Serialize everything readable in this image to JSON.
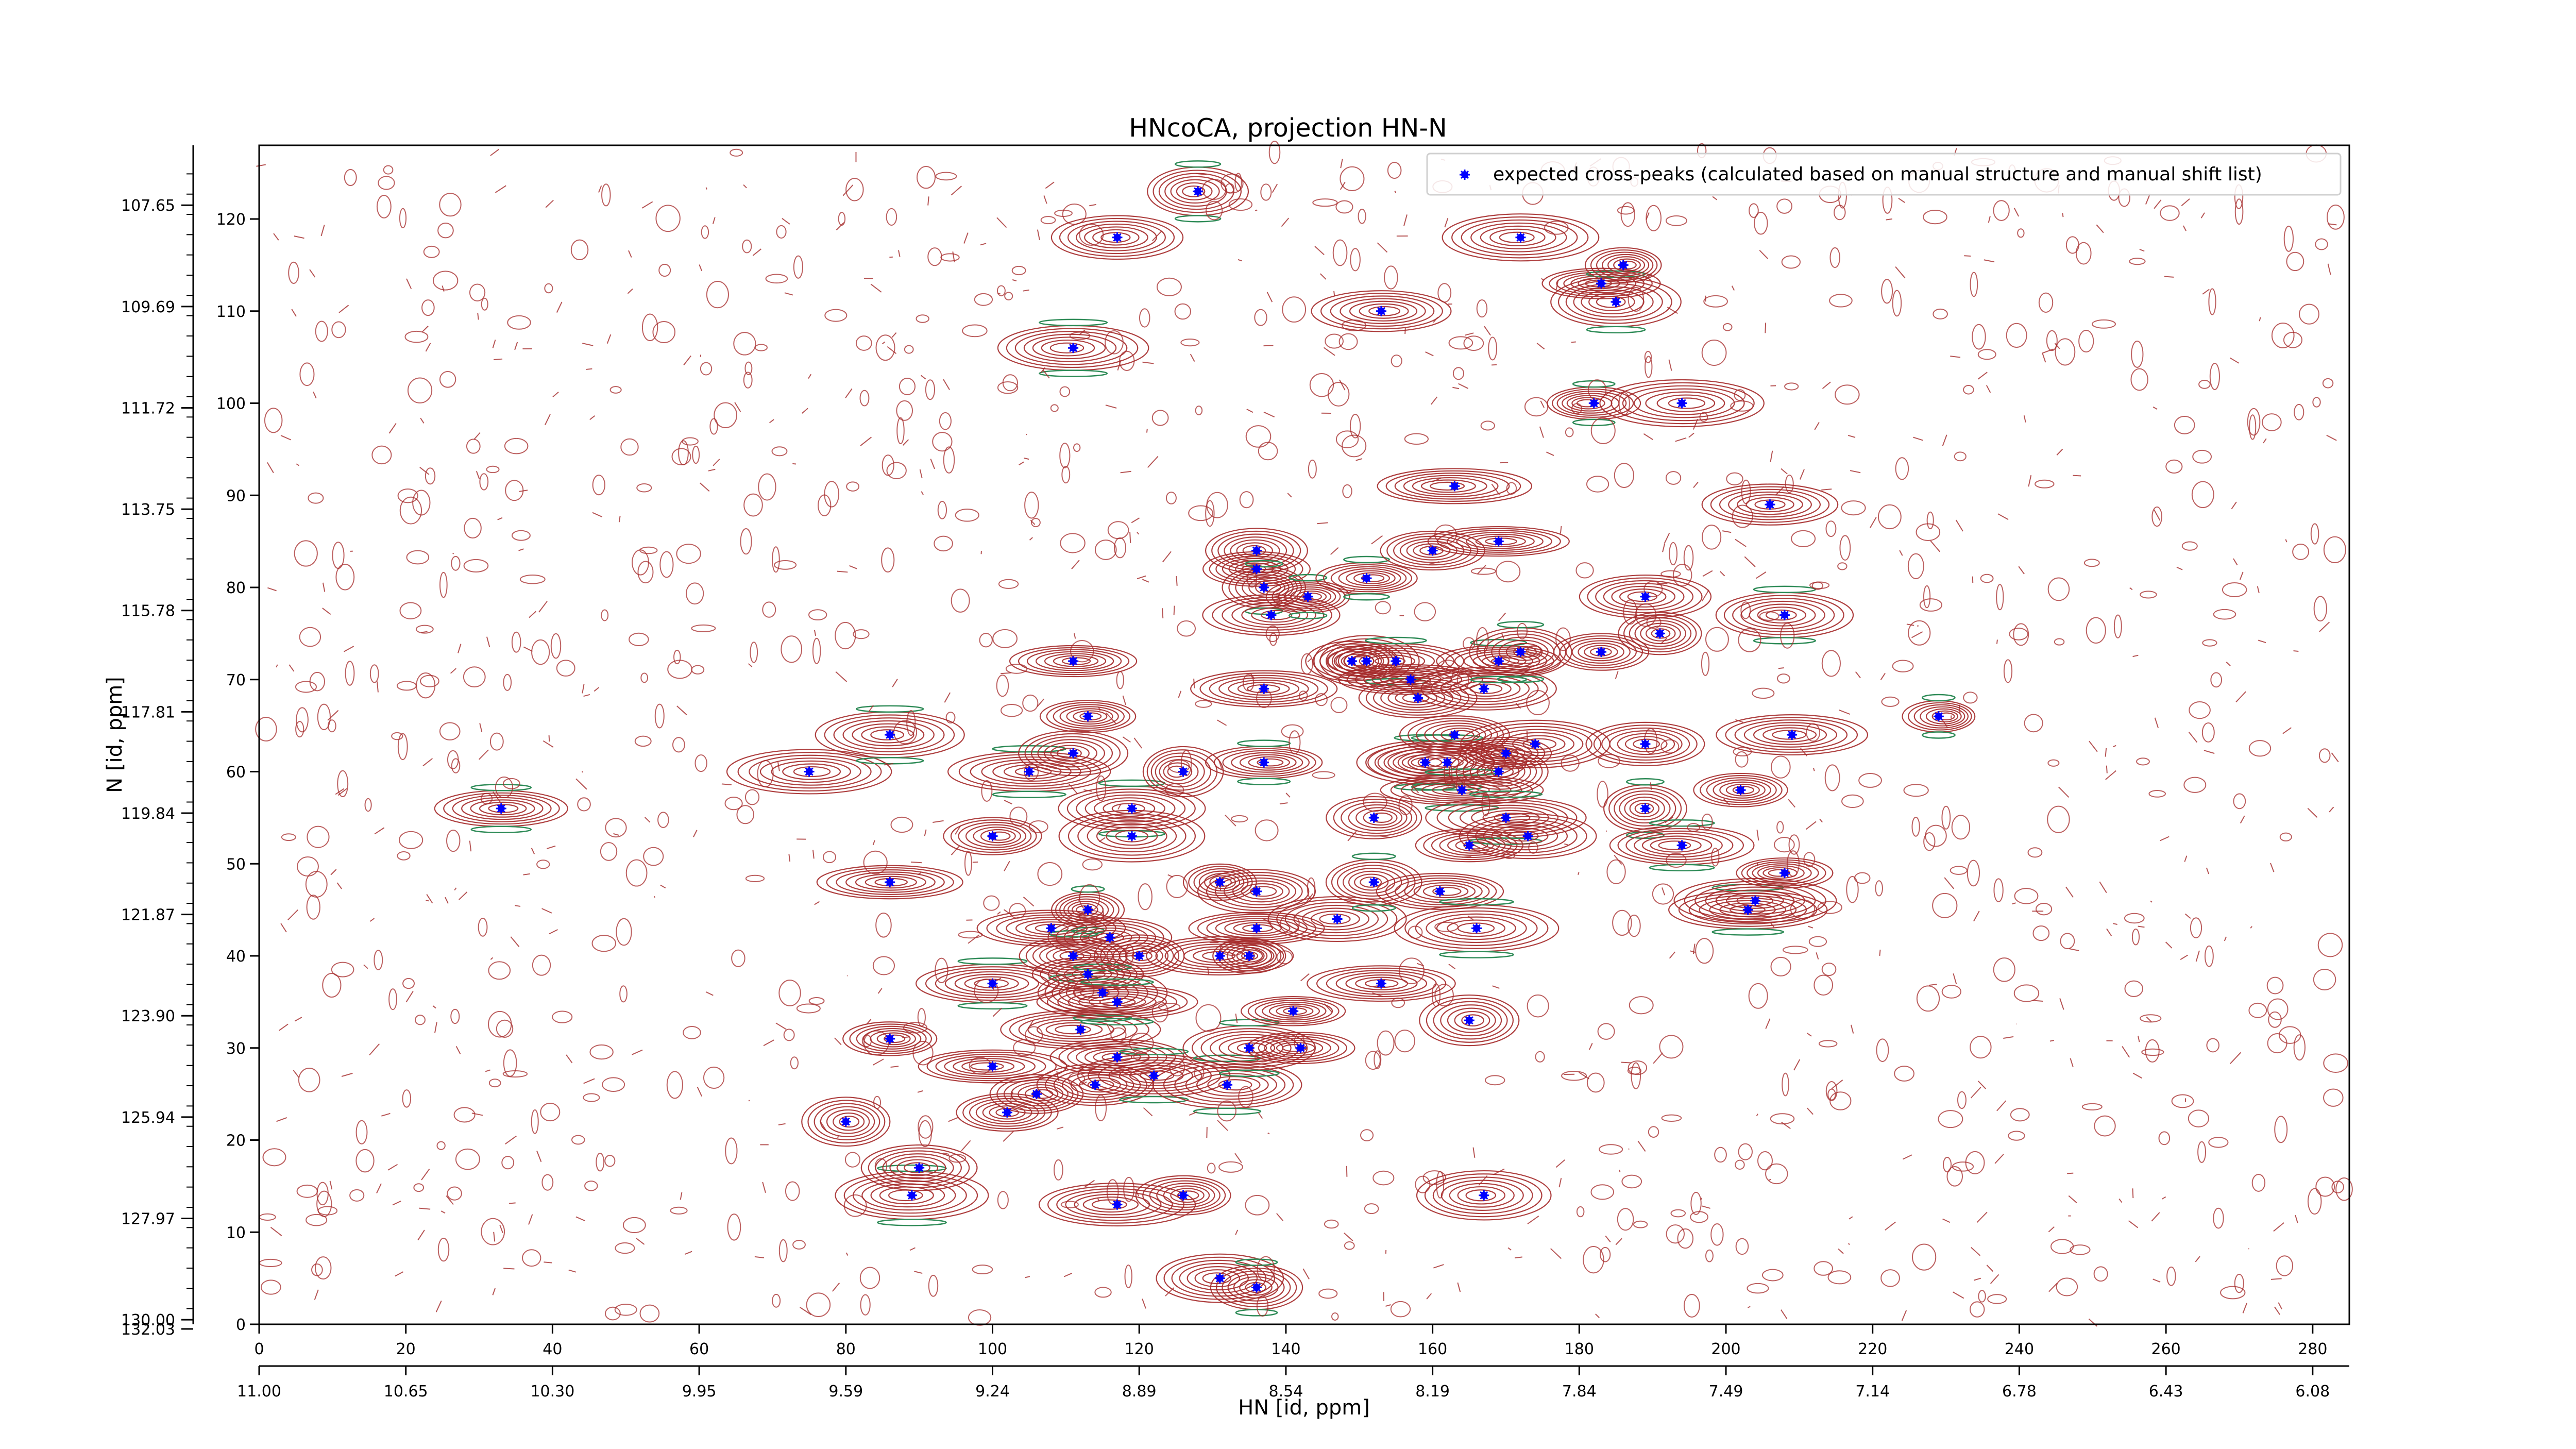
{
  "chart_data": {
    "type": "contour",
    "title": "HNcoCA, projection HN-N",
    "xlabel": "HN [id, ppm]",
    "ylabel": "N [id, ppm]",
    "index_x": {
      "range": [
        0,
        285
      ],
      "ticks": [
        0,
        20,
        40,
        60,
        80,
        100,
        120,
        140,
        160,
        180,
        200,
        220,
        240,
        260,
        280
      ]
    },
    "index_y": {
      "range": [
        0,
        128
      ],
      "ticks": [
        0,
        10,
        20,
        30,
        40,
        50,
        60,
        70,
        80,
        90,
        100,
        110,
        120
      ]
    },
    "ppm_x_tick_labels": [
      "11.00",
      "10.65",
      "10.30",
      "9.95",
      "9.59",
      "9.24",
      "8.89",
      "8.54",
      "8.19",
      "7.84",
      "7.49",
      "7.14",
      "6.78",
      "6.43",
      "6.08"
    ],
    "ppm_y_tick_labels": [
      "107.65",
      "109.69",
      "111.72",
      "113.75",
      "115.78",
      "117.81",
      "119.84",
      "121.87",
      "123.90",
      "125.94",
      "127.97",
      "130.00",
      "132.03"
    ],
    "ppm_y_tick_positions": [
      121.5,
      110.5,
      99.5,
      88.5,
      77.5,
      66.5,
      55.5,
      44.5,
      33.5,
      22.5,
      11.5,
      0.5,
      -0.5
    ],
    "legend": {
      "label": "expected cross-peaks (calculated based on manual structure and manual shift list)",
      "placement": "top-right"
    },
    "contour_colors": {
      "positive": "#a52a2a",
      "negative": "#2e8b57"
    },
    "marker_color": "#0000ff",
    "peaks": [
      [
        33,
        56
      ],
      [
        75,
        60
      ],
      [
        80,
        22
      ],
      [
        86,
        64
      ],
      [
        86,
        48
      ],
      [
        86,
        31
      ],
      [
        89,
        14
      ],
      [
        90,
        17
      ],
      [
        100,
        53
      ],
      [
        100,
        37
      ],
      [
        100,
        28
      ],
      [
        102,
        23
      ],
      [
        105,
        60
      ],
      [
        106,
        25
      ],
      [
        108,
        43
      ],
      [
        111,
        106
      ],
      [
        111,
        72
      ],
      [
        111,
        62
      ],
      [
        111,
        40
      ],
      [
        112,
        32
      ],
      [
        113,
        66
      ],
      [
        113,
        45
      ],
      [
        113,
        38
      ],
      [
        114,
        26
      ],
      [
        115,
        36
      ],
      [
        116,
        42
      ],
      [
        117,
        29
      ],
      [
        117,
        35
      ],
      [
        117,
        13
      ],
      [
        117,
        118
      ],
      [
        119,
        56
      ],
      [
        119,
        53
      ],
      [
        120,
        40
      ],
      [
        122,
        27
      ],
      [
        126,
        60
      ],
      [
        126,
        14
      ],
      [
        128,
        123
      ],
      [
        131,
        40
      ],
      [
        131,
        48
      ],
      [
        132,
        26
      ],
      [
        131,
        5
      ],
      [
        135,
        40
      ],
      [
        135,
        30
      ],
      [
        136,
        47
      ],
      [
        136,
        43
      ],
      [
        136,
        4
      ],
      [
        136,
        84
      ],
      [
        136,
        82
      ],
      [
        137,
        80
      ],
      [
        138,
        77
      ],
      [
        137,
        69
      ],
      [
        137,
        61
      ],
      [
        141,
        34
      ],
      [
        142,
        30
      ],
      [
        143,
        79
      ],
      [
        147,
        44
      ],
      [
        149,
        72
      ],
      [
        151,
        81
      ],
      [
        151,
        72
      ],
      [
        152,
        55
      ],
      [
        152,
        48
      ],
      [
        153,
        37
      ],
      [
        153,
        110
      ],
      [
        155,
        72
      ],
      [
        157,
        70
      ],
      [
        158,
        68
      ],
      [
        159,
        61
      ],
      [
        160,
        84
      ],
      [
        161,
        47
      ],
      [
        162,
        61
      ],
      [
        163,
        91
      ],
      [
        163,
        64
      ],
      [
        164,
        58
      ],
      [
        165,
        52
      ],
      [
        165,
        33
      ],
      [
        166,
        43
      ],
      [
        167,
        14
      ],
      [
        167,
        69
      ],
      [
        169,
        72
      ],
      [
        169,
        85
      ],
      [
        169,
        60
      ],
      [
        170,
        55
      ],
      [
        170,
        62
      ],
      [
        172,
        118
      ],
      [
        172,
        73
      ],
      [
        173,
        53
      ],
      [
        174,
        63
      ],
      [
        182,
        100
      ],
      [
        183,
        73
      ],
      [
        183,
        113
      ],
      [
        185,
        111
      ],
      [
        186,
        115
      ],
      [
        189,
        63
      ],
      [
        189,
        56
      ],
      [
        189,
        79
      ],
      [
        191,
        75
      ],
      [
        194,
        52
      ],
      [
        194,
        100
      ],
      [
        202,
        58
      ],
      [
        203,
        45
      ],
      [
        204,
        46
      ],
      [
        206,
        89
      ],
      [
        208,
        77
      ],
      [
        208,
        49
      ],
      [
        209,
        64
      ],
      [
        229,
        66
      ]
    ]
  }
}
